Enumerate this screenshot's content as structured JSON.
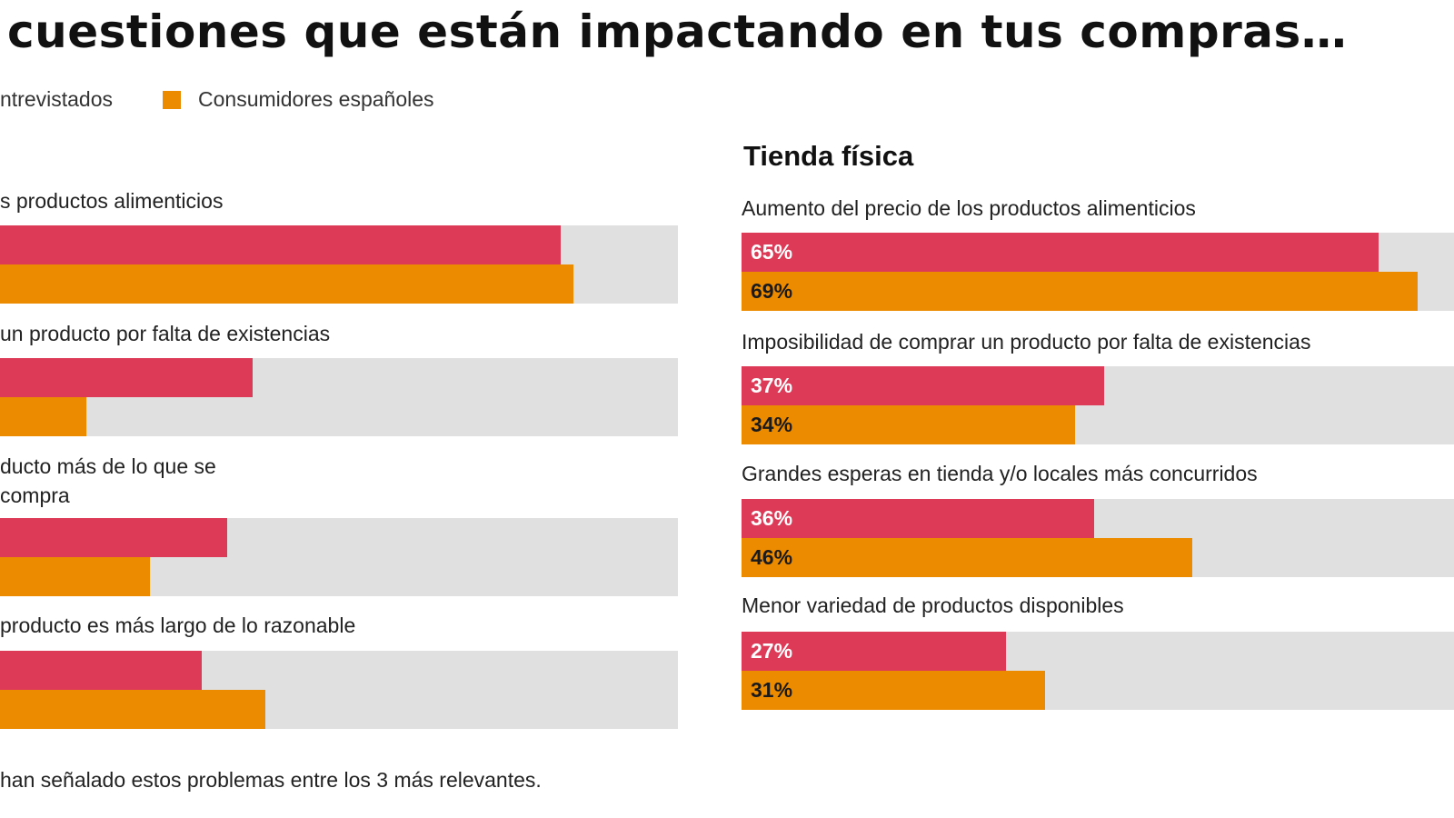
{
  "title": "cuestiones que están impactando en tus compras…",
  "footnote": "han señalado estos problemas entre los 3 más relevantes.",
  "colors": {
    "global": "#dc3a57",
    "spain": "#ec8a00",
    "track": "#e0e0e0"
  },
  "chart_data": [
    {
      "type": "bar",
      "orientation": "horizontal",
      "title": "",
      "legend": [
        {
          "name": "ntrevistados",
          "color": "#dc3a57"
        },
        {
          "name": "Consumidores españoles",
          "color": "#ec8a00"
        }
      ],
      "categories": [
        "s productos alimenticios",
        "un producto por falta de existencias",
        "ducto más de lo que se\ncompra",
        " producto es más largo de lo razonable"
      ],
      "series": [
        {
          "name": "ntrevistados",
          "values": [
            65,
            41,
            39,
            37
          ]
        },
        {
          "name": "Consumidores españoles",
          "values": [
            66,
            28,
            33,
            42
          ]
        }
      ],
      "xlim": [
        0,
        100
      ],
      "value_labels": false
    },
    {
      "type": "bar",
      "orientation": "horizontal",
      "title": "Tienda física",
      "categories": [
        "Aumento del precio de los productos alimenticios",
        "Imposibilidad de comprar un producto por falta de existencias",
        "Grandes esperas en tienda y/o locales más concurridos",
        "Menor variedad de productos disponibles"
      ],
      "series": [
        {
          "name": "ntrevistados",
          "values": [
            65,
            37,
            36,
            27
          ],
          "labels": [
            "65%",
            "37%",
            "36%",
            "27%"
          ]
        },
        {
          "name": "Consumidores españoles",
          "values": [
            69,
            34,
            46,
            31
          ],
          "labels": [
            "69%",
            "34%",
            "46%",
            "31%"
          ]
        }
      ],
      "xlim": [
        0,
        100
      ],
      "value_labels": true
    }
  ]
}
